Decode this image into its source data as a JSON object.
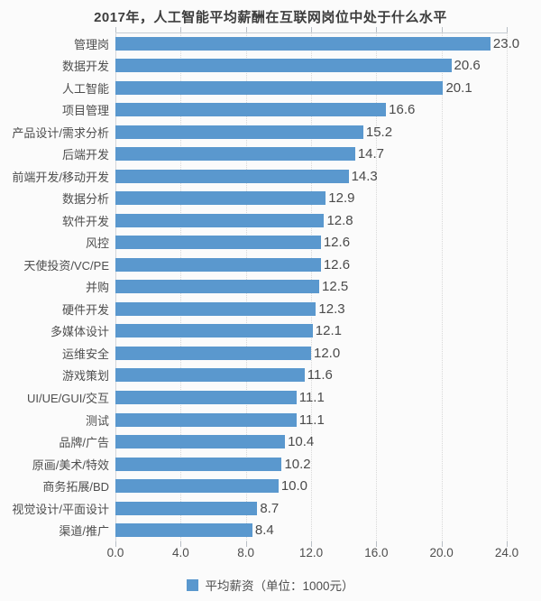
{
  "chart_data": {
    "type": "bar",
    "orientation": "horizontal",
    "title": "2017年，人工智能平均薪酬在互联网岗位中处于什么水平",
    "categories": [
      "管理岗",
      "数据开发",
      "人工智能",
      "项目管理",
      "产品设计/需求分析",
      "后端开发",
      "前端开发/移动开发",
      "数据分析",
      "软件开发",
      "风控",
      "天使投资/VC/PE",
      "并购",
      "硬件开发",
      "多媒体设计",
      "运维安全",
      "游戏策划",
      "UI/UE/GUI/交互",
      "测试",
      "品牌/广告",
      "原画/美术/特效",
      "商务拓展/BD",
      "视觉设计/平面设计",
      "渠道/推广"
    ],
    "values": [
      23.0,
      20.6,
      20.1,
      16.6,
      15.2,
      14.7,
      14.3,
      12.9,
      12.8,
      12.6,
      12.6,
      12.5,
      12.3,
      12.1,
      12.0,
      11.6,
      11.1,
      11.1,
      10.4,
      10.2,
      10.0,
      8.7,
      8.4
    ],
    "value_decimals": 1,
    "xlabel": "",
    "ylabel": "",
    "xlim": [
      0,
      24
    ],
    "x_ticks": [
      "0.0",
      "4.0",
      "8.0",
      "12.0",
      "16.0",
      "20.0",
      "24.0"
    ],
    "grid": "vertical-dotted",
    "legend": {
      "label": "平均薪资（单位：1000元）",
      "position": "bottom"
    },
    "bar_color": "#5a98ce"
  },
  "colors": {
    "bar": "#5a98ce",
    "title_text": "#3d3d3d",
    "label_text": "#4e4e4e",
    "value_text": "#4a4a4a",
    "gridline": "#d8d8d8",
    "axis_line": "#c6ccd3",
    "background": "#fbfbfb"
  }
}
